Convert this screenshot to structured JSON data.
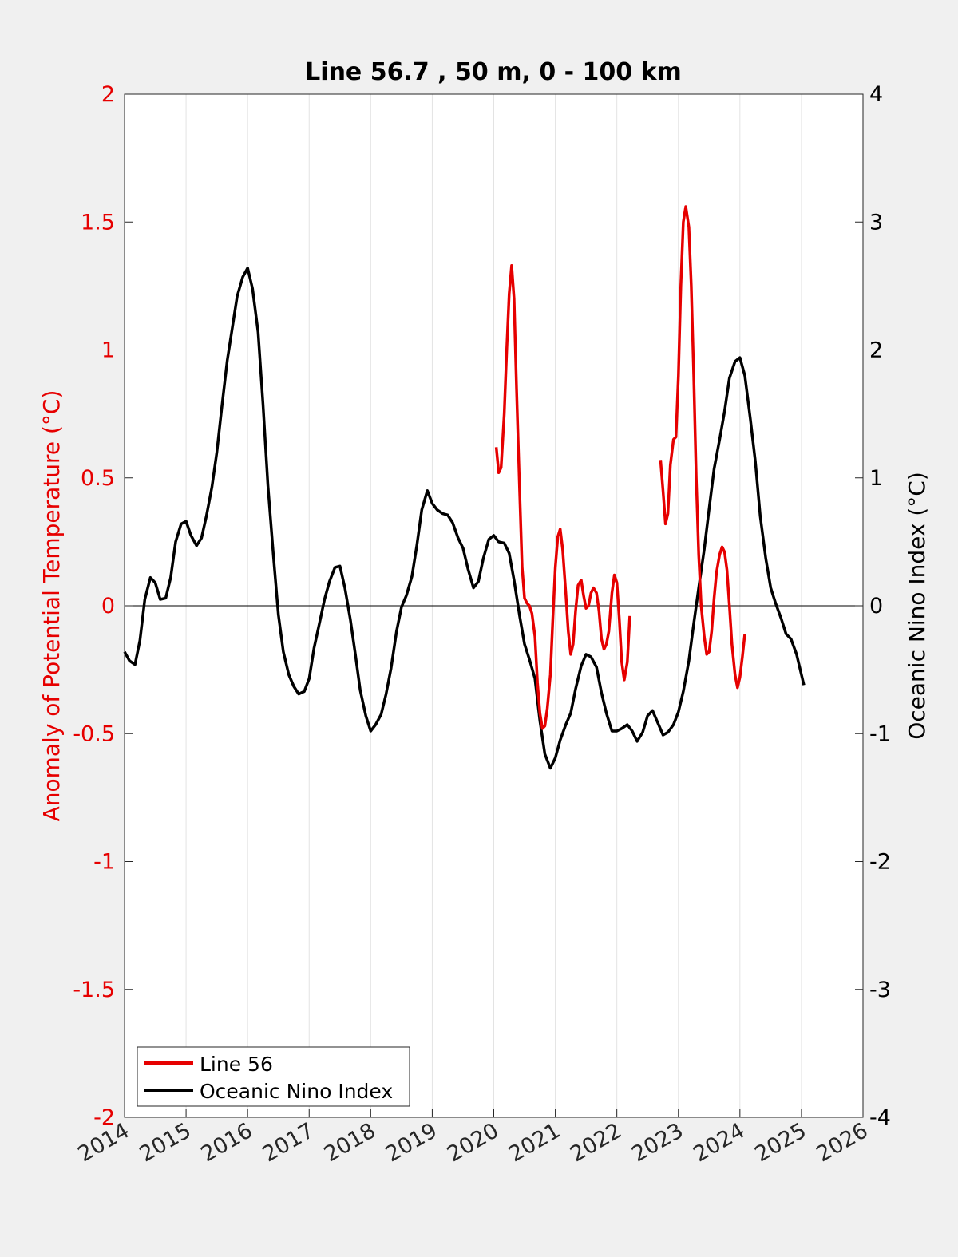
{
  "chart_data": {
    "type": "line",
    "title": "Line 56.7 , 50 m, 0 - 100 km",
    "xlabel": "",
    "ylabel_left": "Anomaly of Potential Temperature (°C)",
    "ylabel_right": "Oceanic Nino Index (°C)",
    "xlim": [
      2014,
      2026
    ],
    "ylim_left": [
      -2,
      2
    ],
    "ylim_right": [
      -4,
      4
    ],
    "x_ticks": [
      "2014",
      "2015",
      "2016",
      "2017",
      "2018",
      "2019",
      "2020",
      "2021",
      "2022",
      "2023",
      "2024",
      "2025",
      "2026"
    ],
    "y_ticks_left": [
      "2",
      "1.5",
      "1",
      "0.5",
      "0",
      "-0.5",
      "-1",
      "-1.5",
      "-2"
    ],
    "y_ticks_right": [
      "4",
      "3",
      "2",
      "1",
      "0",
      "-1",
      "-2",
      "-3",
      "-4"
    ],
    "grid": "vertical",
    "legend_position": "bottom-left",
    "colors": {
      "line56": "#e60000",
      "oni": "#000000",
      "left_axis": "#e60000",
      "right_axis": "#000000"
    },
    "series": [
      {
        "name": "Line 56",
        "axis": "left",
        "segments": [
          [
            [
              2020.04,
              0.62
            ],
            [
              2020.08,
              0.52
            ],
            [
              2020.12,
              0.54
            ],
            [
              2020.17,
              0.75
            ],
            [
              2020.21,
              1.0
            ],
            [
              2020.25,
              1.22
            ],
            [
              2020.29,
              1.33
            ],
            [
              2020.33,
              1.2
            ],
            [
              2020.37,
              0.85
            ],
            [
              2020.42,
              0.45
            ],
            [
              2020.46,
              0.15
            ],
            [
              2020.5,
              0.03
            ],
            [
              2020.54,
              0.01
            ],
            [
              2020.58,
              0.0
            ],
            [
              2020.62,
              -0.03
            ],
            [
              2020.67,
              -0.12
            ],
            [
              2020.71,
              -0.3
            ],
            [
              2020.75,
              -0.42
            ],
            [
              2020.79,
              -0.48
            ],
            [
              2020.83,
              -0.47
            ],
            [
              2020.87,
              -0.4
            ],
            [
              2020.92,
              -0.27
            ],
            [
              2020.96,
              -0.05
            ],
            [
              2021.0,
              0.15
            ],
            [
              2021.04,
              0.27
            ],
            [
              2021.08,
              0.3
            ],
            [
              2021.12,
              0.22
            ],
            [
              2021.17,
              0.05
            ],
            [
              2021.21,
              -0.1
            ],
            [
              2021.25,
              -0.19
            ],
            [
              2021.29,
              -0.15
            ],
            [
              2021.33,
              -0.02
            ],
            [
              2021.37,
              0.08
            ],
            [
              2021.42,
              0.1
            ],
            [
              2021.46,
              0.04
            ],
            [
              2021.5,
              -0.01
            ],
            [
              2021.54,
              0.0
            ],
            [
              2021.58,
              0.05
            ],
            [
              2021.62,
              0.07
            ],
            [
              2021.67,
              0.05
            ],
            [
              2021.71,
              -0.02
            ],
            [
              2021.75,
              -0.13
            ],
            [
              2021.79,
              -0.17
            ],
            [
              2021.83,
              -0.15
            ],
            [
              2021.87,
              -0.1
            ],
            [
              2021.92,
              0.05
            ],
            [
              2021.96,
              0.12
            ],
            [
              2022.0,
              0.09
            ],
            [
              2022.04,
              -0.05
            ],
            [
              2022.08,
              -0.22
            ],
            [
              2022.12,
              -0.29
            ],
            [
              2022.17,
              -0.22
            ],
            [
              2022.21,
              -0.04
            ]
          ],
          [
            [
              2022.71,
              0.57
            ],
            [
              2022.75,
              0.45
            ],
            [
              2022.79,
              0.32
            ],
            [
              2022.83,
              0.36
            ],
            [
              2022.87,
              0.55
            ],
            [
              2022.92,
              0.65
            ],
            [
              2022.96,
              0.66
            ],
            [
              2023.0,
              0.9
            ],
            [
              2023.04,
              1.25
            ],
            [
              2023.08,
              1.5
            ],
            [
              2023.12,
              1.56
            ],
            [
              2023.17,
              1.48
            ],
            [
              2023.21,
              1.25
            ],
            [
              2023.25,
              0.9
            ],
            [
              2023.29,
              0.5
            ],
            [
              2023.33,
              0.2
            ],
            [
              2023.37,
              0.0
            ],
            [
              2023.42,
              -0.12
            ],
            [
              2023.46,
              -0.19
            ],
            [
              2023.5,
              -0.18
            ],
            [
              2023.54,
              -0.1
            ],
            [
              2023.58,
              0.03
            ],
            [
              2023.62,
              0.13
            ],
            [
              2023.67,
              0.2
            ],
            [
              2023.71,
              0.23
            ],
            [
              2023.75,
              0.21
            ],
            [
              2023.79,
              0.14
            ],
            [
              2023.83,
              0.0
            ],
            [
              2023.87,
              -0.15
            ],
            [
              2023.92,
              -0.27
            ],
            [
              2023.96,
              -0.32
            ],
            [
              2024.0,
              -0.28
            ],
            [
              2024.04,
              -0.2
            ],
            [
              2024.08,
              -0.11
            ]
          ]
        ]
      },
      {
        "name": "Oceanic Nino Index",
        "axis": "right",
        "points": [
          [
            2014.0,
            -0.36
          ],
          [
            2014.08,
            -0.43
          ],
          [
            2014.17,
            -0.46
          ],
          [
            2014.25,
            -0.27
          ],
          [
            2014.33,
            0.05
          ],
          [
            2014.42,
            0.22
          ],
          [
            2014.5,
            0.18
          ],
          [
            2014.58,
            0.05
          ],
          [
            2014.67,
            0.06
          ],
          [
            2014.75,
            0.22
          ],
          [
            2014.83,
            0.5
          ],
          [
            2014.92,
            0.64
          ],
          [
            2015.0,
            0.66
          ],
          [
            2015.08,
            0.55
          ],
          [
            2015.17,
            0.47
          ],
          [
            2015.25,
            0.53
          ],
          [
            2015.33,
            0.7
          ],
          [
            2015.42,
            0.93
          ],
          [
            2015.5,
            1.2
          ],
          [
            2015.58,
            1.55
          ],
          [
            2015.67,
            1.92
          ],
          [
            2015.75,
            2.17
          ],
          [
            2015.83,
            2.42
          ],
          [
            2015.92,
            2.57
          ],
          [
            2016.0,
            2.64
          ],
          [
            2016.08,
            2.48
          ],
          [
            2016.17,
            2.14
          ],
          [
            2016.25,
            1.58
          ],
          [
            2016.33,
            0.94
          ],
          [
            2016.42,
            0.39
          ],
          [
            2016.5,
            -0.07
          ],
          [
            2016.58,
            -0.36
          ],
          [
            2016.67,
            -0.54
          ],
          [
            2016.75,
            -0.63
          ],
          [
            2016.83,
            -0.69
          ],
          [
            2016.92,
            -0.67
          ],
          [
            2017.0,
            -0.57
          ],
          [
            2017.08,
            -0.33
          ],
          [
            2017.17,
            -0.13
          ],
          [
            2017.25,
            0.05
          ],
          [
            2017.33,
            0.19
          ],
          [
            2017.42,
            0.3
          ],
          [
            2017.5,
            0.31
          ],
          [
            2017.58,
            0.14
          ],
          [
            2017.67,
            -0.11
          ],
          [
            2017.75,
            -0.38
          ],
          [
            2017.83,
            -0.66
          ],
          [
            2017.92,
            -0.86
          ],
          [
            2018.0,
            -0.98
          ],
          [
            2018.08,
            -0.93
          ],
          [
            2018.17,
            -0.85
          ],
          [
            2018.25,
            -0.69
          ],
          [
            2018.33,
            -0.49
          ],
          [
            2018.42,
            -0.2
          ],
          [
            2018.5,
            -0.01
          ],
          [
            2018.58,
            0.08
          ],
          [
            2018.67,
            0.23
          ],
          [
            2018.75,
            0.47
          ],
          [
            2018.83,
            0.75
          ],
          [
            2018.92,
            0.9
          ],
          [
            2019.0,
            0.8
          ],
          [
            2019.08,
            0.75
          ],
          [
            2019.17,
            0.72
          ],
          [
            2019.25,
            0.71
          ],
          [
            2019.33,
            0.65
          ],
          [
            2019.42,
            0.53
          ],
          [
            2019.5,
            0.45
          ],
          [
            2019.58,
            0.29
          ],
          [
            2019.67,
            0.14
          ],
          [
            2019.75,
            0.19
          ],
          [
            2019.83,
            0.37
          ],
          [
            2019.92,
            0.52
          ],
          [
            2020.0,
            0.55
          ],
          [
            2020.08,
            0.5
          ],
          [
            2020.17,
            0.49
          ],
          [
            2020.25,
            0.41
          ],
          [
            2020.33,
            0.2
          ],
          [
            2020.42,
            -0.08
          ],
          [
            2020.5,
            -0.3
          ],
          [
            2020.58,
            -0.42
          ],
          [
            2020.67,
            -0.57
          ],
          [
            2020.75,
            -0.9
          ],
          [
            2020.83,
            -1.16
          ],
          [
            2020.92,
            -1.27
          ],
          [
            2021.0,
            -1.19
          ],
          [
            2021.08,
            -1.05
          ],
          [
            2021.17,
            -0.93
          ],
          [
            2021.25,
            -0.84
          ],
          [
            2021.33,
            -0.65
          ],
          [
            2021.42,
            -0.47
          ],
          [
            2021.5,
            -0.38
          ],
          [
            2021.58,
            -0.4
          ],
          [
            2021.67,
            -0.48
          ],
          [
            2021.75,
            -0.68
          ],
          [
            2021.83,
            -0.84
          ],
          [
            2021.92,
            -0.98
          ],
          [
            2022.0,
            -0.98
          ],
          [
            2022.08,
            -0.96
          ],
          [
            2022.17,
            -0.93
          ],
          [
            2022.25,
            -0.98
          ],
          [
            2022.33,
            -1.06
          ],
          [
            2022.42,
            -0.99
          ],
          [
            2022.5,
            -0.86
          ],
          [
            2022.58,
            -0.82
          ],
          [
            2022.67,
            -0.92
          ],
          [
            2022.75,
            -1.01
          ],
          [
            2022.83,
            -0.99
          ],
          [
            2022.92,
            -0.93
          ],
          [
            2023.0,
            -0.83
          ],
          [
            2023.08,
            -0.67
          ],
          [
            2023.17,
            -0.43
          ],
          [
            2023.25,
            -0.14
          ],
          [
            2023.33,
            0.14
          ],
          [
            2023.42,
            0.44
          ],
          [
            2023.5,
            0.76
          ],
          [
            2023.58,
            1.07
          ],
          [
            2023.67,
            1.3
          ],
          [
            2023.75,
            1.52
          ],
          [
            2023.83,
            1.78
          ],
          [
            2023.92,
            1.91
          ],
          [
            2024.0,
            1.94
          ],
          [
            2024.08,
            1.8
          ],
          [
            2024.17,
            1.46
          ],
          [
            2024.25,
            1.13
          ],
          [
            2024.33,
            0.7
          ],
          [
            2024.42,
            0.37
          ],
          [
            2024.5,
            0.14
          ],
          [
            2024.58,
            0.02
          ],
          [
            2024.67,
            -0.1
          ],
          [
            2024.75,
            -0.22
          ],
          [
            2024.83,
            -0.26
          ],
          [
            2024.92,
            -0.38
          ],
          [
            2025.0,
            -0.54
          ],
          [
            2025.04,
            -0.62
          ]
        ]
      }
    ]
  }
}
